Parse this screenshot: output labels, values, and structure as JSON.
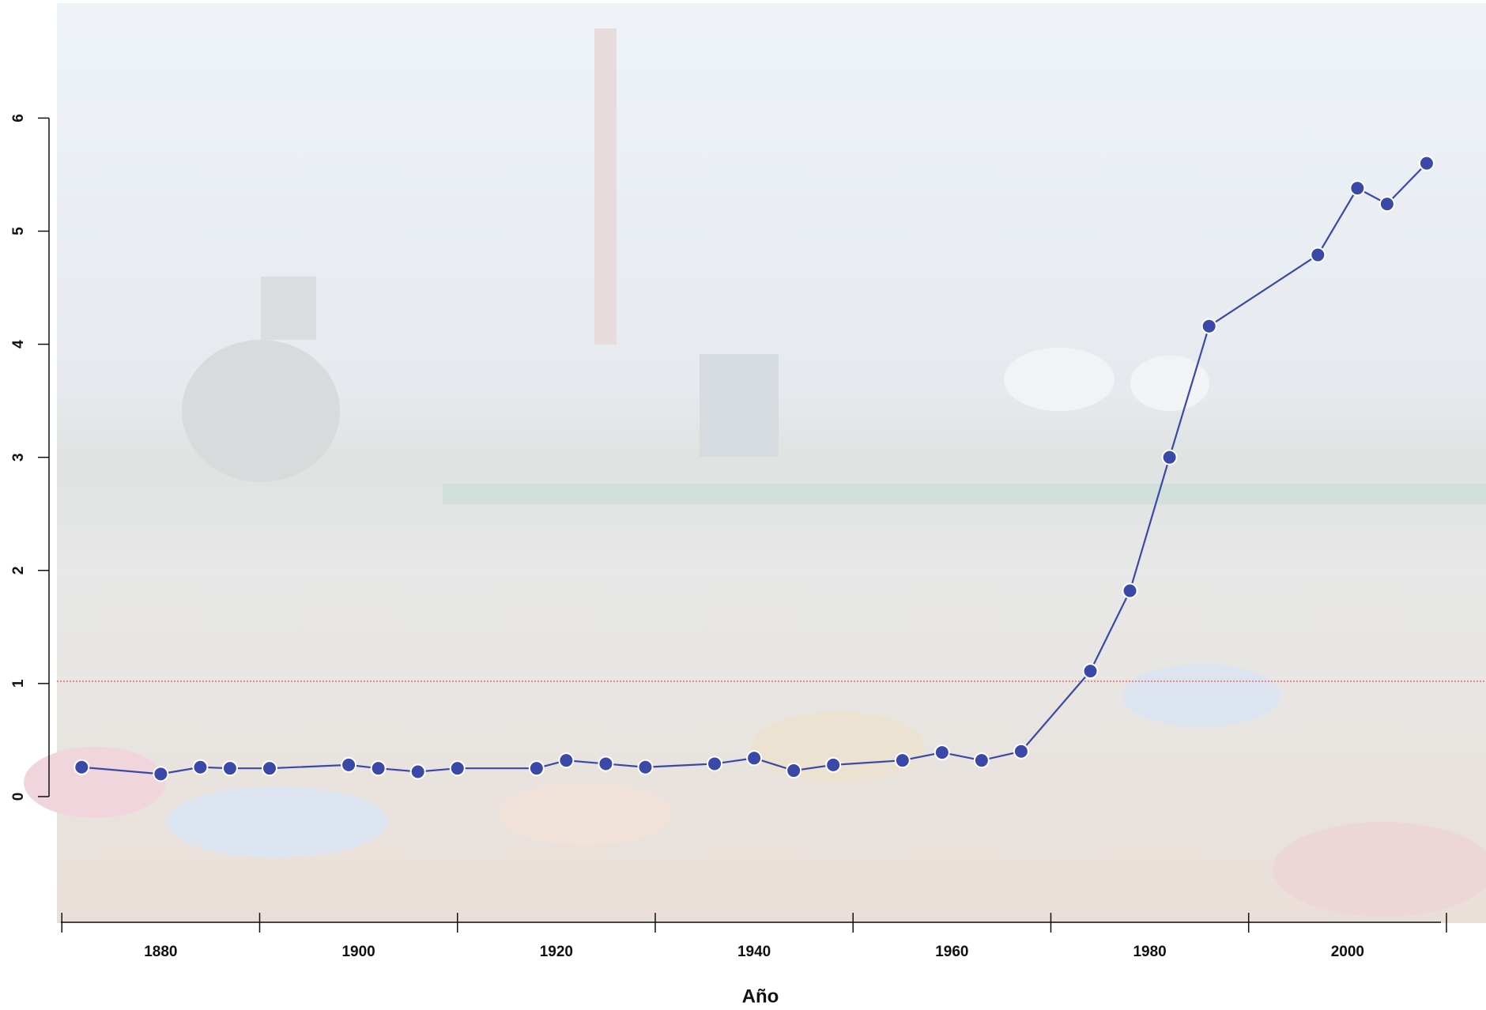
{
  "chart_data": {
    "type": "line",
    "x_label": "Año",
    "x": [
      1872,
      1880,
      1884,
      1887,
      1891,
      1899,
      1902,
      1906,
      1910,
      1918,
      1921,
      1925,
      1929,
      1936,
      1940,
      1944,
      1948,
      1955,
      1959,
      1963,
      1967,
      1974,
      1978,
      1982,
      1986,
      1997,
      2001,
      2004,
      2008
    ],
    "series": [
      {
        "color": "#3a48a8",
        "values": [
          0.26,
          0.2,
          0.26,
          0.25,
          0.25,
          0.28,
          0.25,
          0.22,
          0.25,
          0.25,
          0.32,
          0.29,
          0.26,
          0.29,
          0.34,
          0.23,
          0.28,
          0.32,
          0.39,
          0.32,
          0.4,
          1.11,
          1.82,
          3.0,
          4.16,
          4.79,
          5.38,
          5.24,
          5.6
        ]
      }
    ],
    "xlim": [
      1869.5,
      2014
    ],
    "xticks": [
      1880,
      1900,
      1920,
      1940,
      1960,
      1980,
      2000
    ],
    "xtick_marks": [
      1870,
      1890,
      1910,
      1930,
      1950,
      1970,
      1990,
      2010
    ],
    "ylim": [
      -1.1,
      6
    ],
    "yticks": [
      0,
      1,
      2,
      3,
      4,
      5,
      6
    ],
    "hline": {
      "value": 1.02,
      "color": "#e53030"
    }
  }
}
